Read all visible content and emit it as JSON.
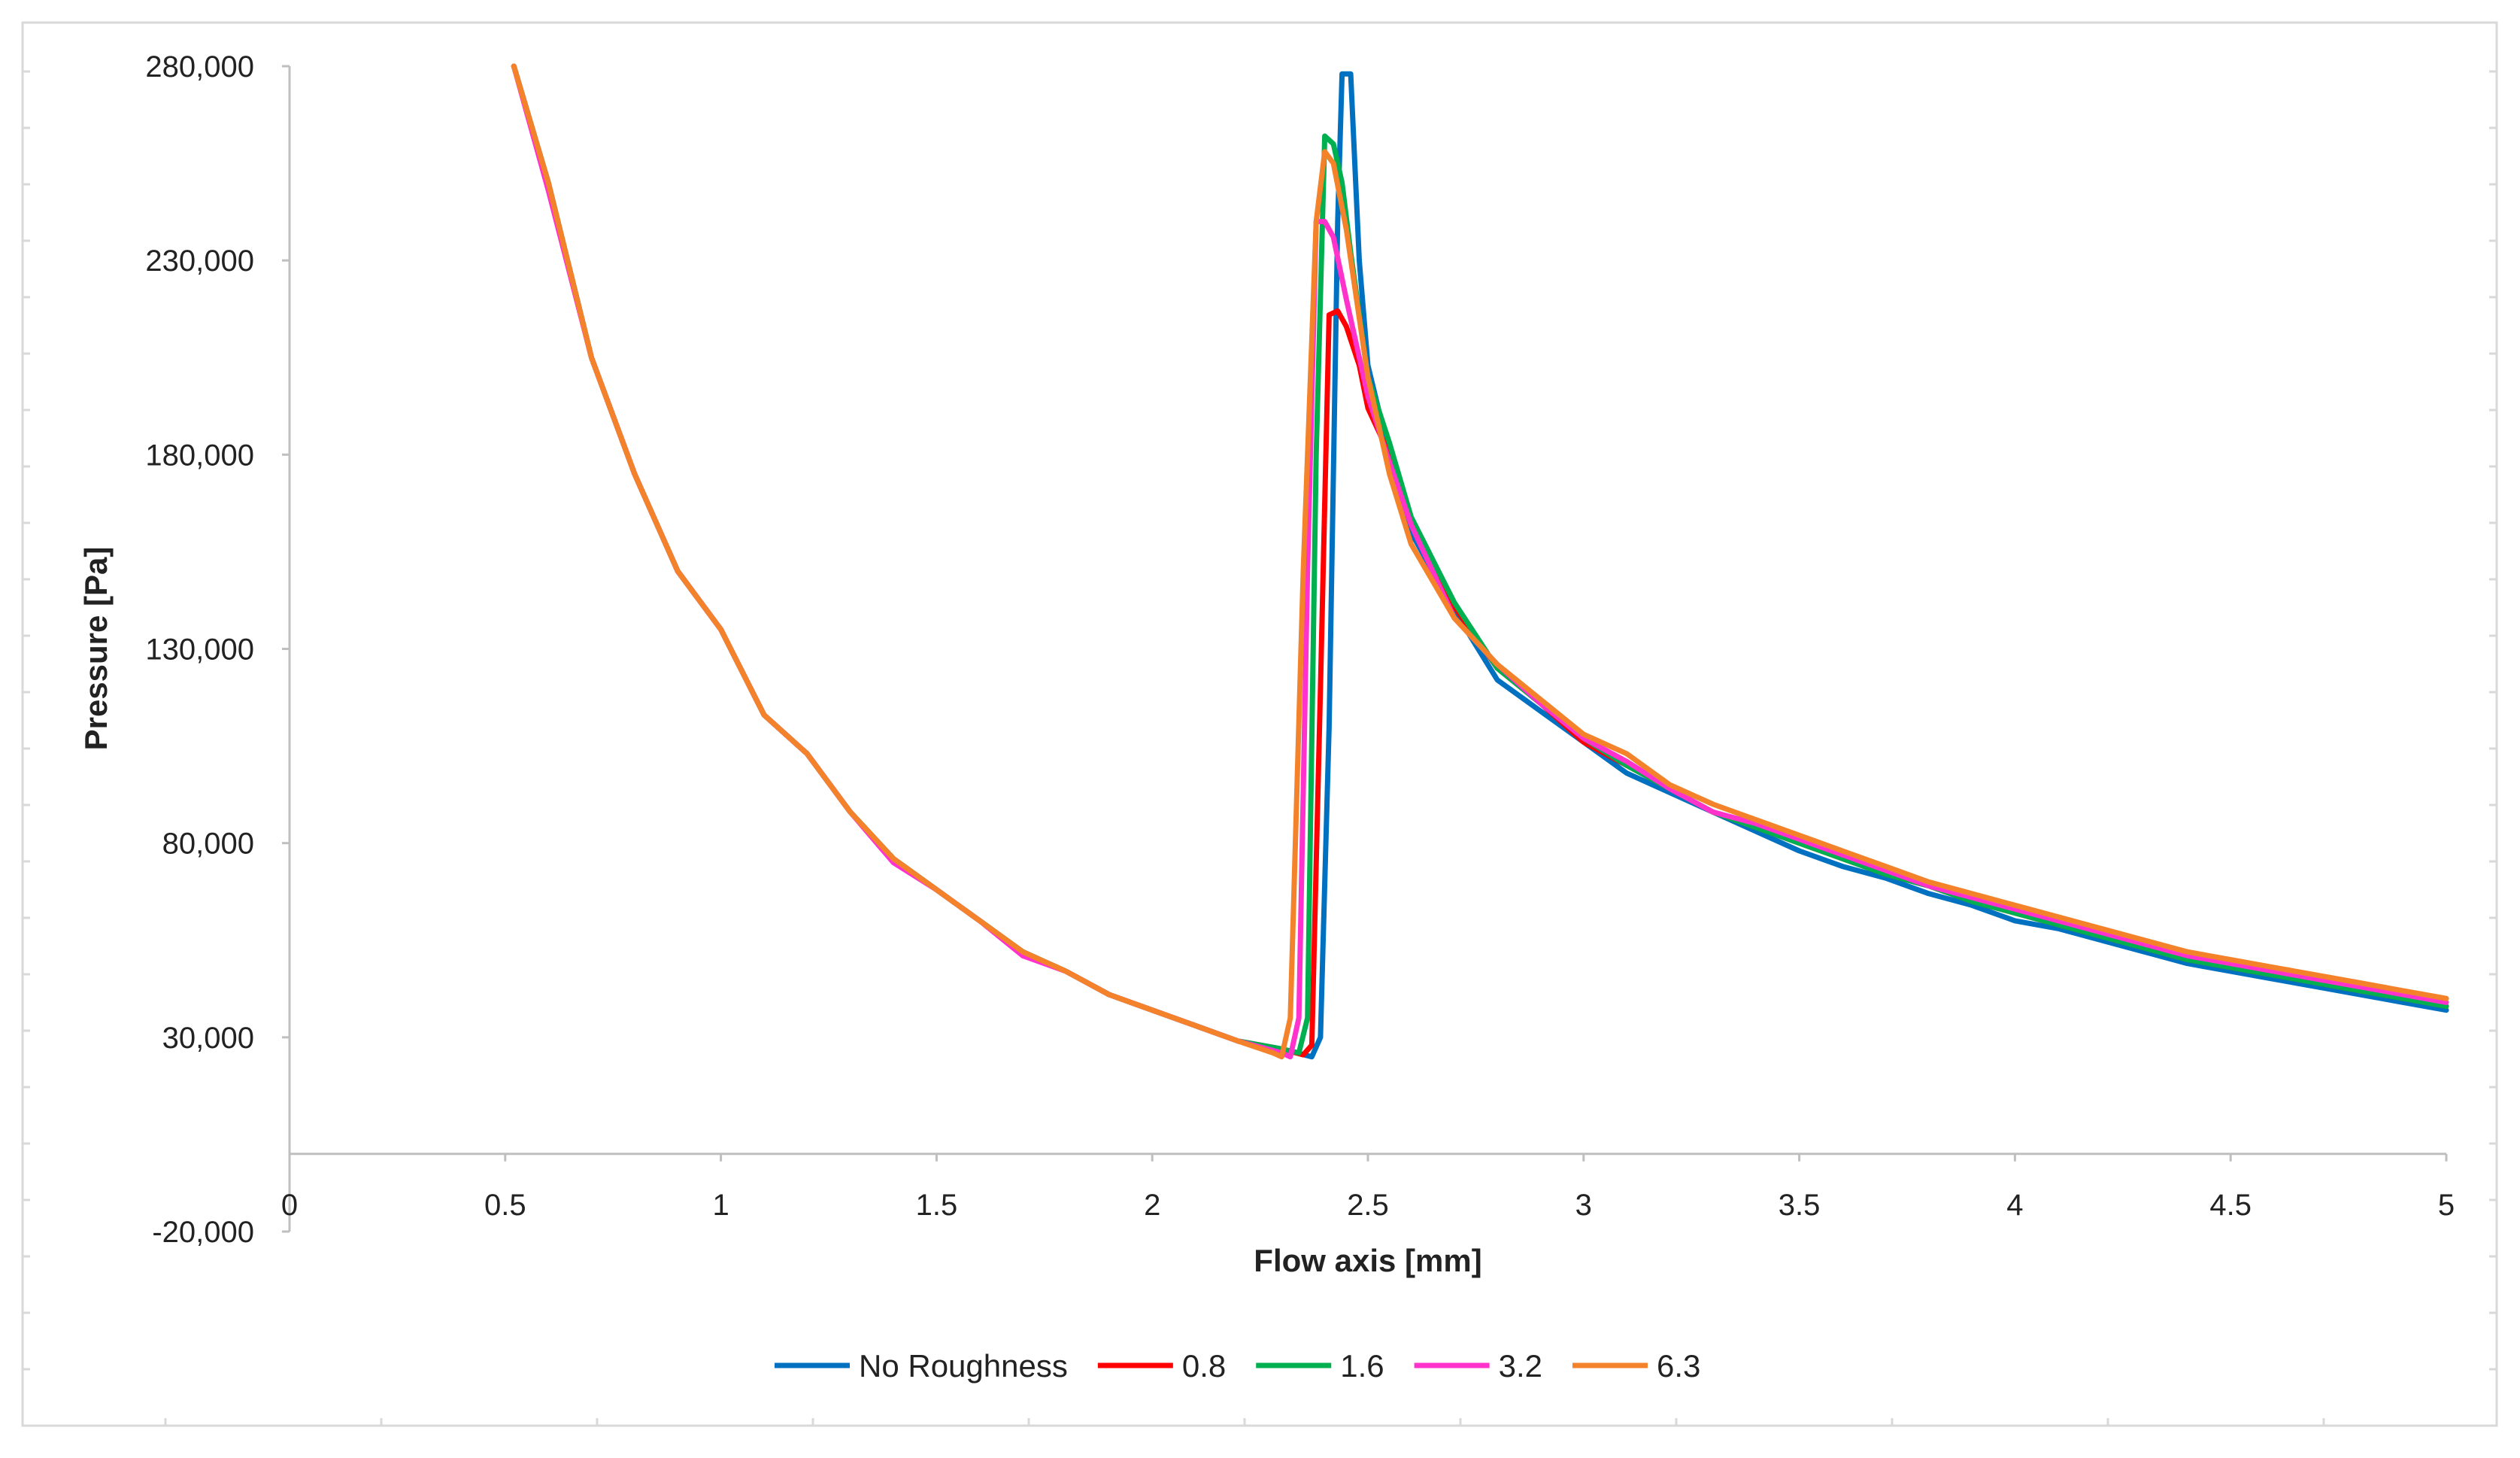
{
  "chart_data": {
    "type": "line",
    "title": "",
    "xlabel": "Flow axis [mm]",
    "ylabel": "Pressure [Pa]",
    "xlim": [
      0,
      5
    ],
    "ylim": [
      -20000,
      280000
    ],
    "xticks": [
      0,
      0.5,
      1,
      1.5,
      2,
      2.5,
      3,
      3.5,
      4,
      4.5,
      5
    ],
    "xtick_labels": [
      "0",
      "0.5",
      "1",
      "1.5",
      "2",
      "2.5",
      "3",
      "3.5",
      "4",
      "4.5",
      "5"
    ],
    "yticks": [
      -20000,
      30000,
      80000,
      130000,
      180000,
      230000,
      280000
    ],
    "ytick_labels": [
      "-20,000",
      "30,000",
      "80,000",
      "130,000",
      "180,000",
      "230,000",
      "280,000"
    ],
    "grid": false,
    "legend_position": "bottom",
    "series": [
      {
        "name": "No Roughness",
        "color": "#0070C0",
        "x": [
          0.52,
          0.6,
          0.7,
          0.8,
          0.9,
          1.0,
          1.1,
          1.2,
          1.3,
          1.4,
          1.5,
          1.6,
          1.7,
          1.8,
          1.9,
          2.0,
          2.1,
          2.2,
          2.3,
          2.37,
          2.39,
          2.41,
          2.43,
          2.44,
          2.46,
          2.48,
          2.5,
          2.55,
          2.6,
          2.7,
          2.8,
          2.9,
          3.0,
          3.1,
          3.2,
          3.3,
          3.4,
          3.5,
          3.6,
          3.7,
          3.8,
          3.9,
          4.0,
          4.1,
          4.2,
          4.3,
          4.4,
          4.5,
          4.6,
          4.7,
          4.8,
          4.9,
          5.0
        ],
        "y": [
          280000,
          250000,
          205000,
          175000,
          150000,
          135000,
          113000,
          103000,
          88000,
          76000,
          68000,
          60000,
          52000,
          47000,
          41000,
          37000,
          33000,
          29000,
          27000,
          25000,
          30000,
          110000,
          240000,
          278000,
          278000,
          230000,
          203000,
          180000,
          160000,
          140000,
          122000,
          114000,
          106000,
          98000,
          93000,
          88000,
          83000,
          78000,
          74000,
          71000,
          67000,
          64000,
          60000,
          58000,
          55000,
          52000,
          49000,
          47000,
          45000,
          43000,
          41000,
          39000,
          37000
        ]
      },
      {
        "name": "0.8",
        "color": "#FF0000",
        "x": [
          0.52,
          0.6,
          0.7,
          0.8,
          0.9,
          1.0,
          1.1,
          1.2,
          1.3,
          1.4,
          1.5,
          1.6,
          1.7,
          1.8,
          1.9,
          2.0,
          2.1,
          2.2,
          2.3,
          2.35,
          2.37,
          2.39,
          2.41,
          2.43,
          2.45,
          2.48,
          2.5,
          2.55,
          2.6,
          2.7,
          2.8,
          2.9,
          3.0,
          3.1,
          3.2,
          3.3,
          3.4,
          3.5,
          3.6,
          3.7,
          3.8,
          3.9,
          4.0,
          4.1,
          4.2,
          4.3,
          4.4,
          4.5,
          4.6,
          4.7,
          4.8,
          4.9,
          5.0
        ],
        "y": [
          280000,
          250000,
          205000,
          175000,
          150000,
          135000,
          113000,
          103000,
          88000,
          76000,
          68000,
          60000,
          52000,
          47000,
          41000,
          37000,
          33000,
          29000,
          27000,
          25500,
          28000,
          120000,
          216000,
          217000,
          213000,
          203000,
          192000,
          180000,
          162000,
          141000,
          125000,
          116000,
          106000,
          100000,
          94000,
          88000,
          84000,
          80000,
          76000,
          72000,
          69000,
          65000,
          62000,
          59000,
          56000,
          53000,
          50000,
          48000,
          46000,
          44000,
          42000,
          40000,
          38000
        ]
      },
      {
        "name": "1.6",
        "color": "#00B050",
        "x": [
          0.52,
          0.6,
          0.7,
          0.8,
          0.9,
          1.0,
          1.1,
          1.2,
          1.3,
          1.4,
          1.5,
          1.6,
          1.7,
          1.8,
          1.9,
          2.0,
          2.1,
          2.2,
          2.3,
          2.34,
          2.36,
          2.38,
          2.4,
          2.42,
          2.44,
          2.46,
          2.5,
          2.55,
          2.6,
          2.7,
          2.8,
          2.9,
          3.0,
          3.1,
          3.2,
          3.3,
          3.4,
          3.5,
          3.6,
          3.7,
          3.8,
          3.9,
          4.0,
          4.1,
          4.2,
          4.3,
          4.4,
          4.5,
          4.6,
          4.7,
          4.8,
          4.9,
          5.0
        ],
        "y": [
          280000,
          250000,
          205000,
          175000,
          150000,
          135000,
          113000,
          103000,
          88000,
          76000,
          68000,
          60000,
          52000,
          47000,
          41000,
          37000,
          33000,
          29000,
          27000,
          26000,
          35000,
          180000,
          262000,
          260000,
          250000,
          232000,
          200000,
          183000,
          164000,
          142000,
          125000,
          116000,
          107000,
          100000,
          94000,
          88000,
          84000,
          80000,
          76000,
          72000,
          69000,
          65000,
          62000,
          59000,
          56000,
          53000,
          50000,
          48000,
          46000,
          44000,
          42000,
          40000,
          38000
        ]
      },
      {
        "name": "3.2",
        "color": "#FF33CC",
        "x": [
          0.52,
          0.6,
          0.7,
          0.8,
          0.9,
          1.0,
          1.1,
          1.2,
          1.3,
          1.4,
          1.5,
          1.6,
          1.7,
          1.8,
          1.9,
          2.0,
          2.1,
          2.2,
          2.3,
          2.32,
          2.34,
          2.36,
          2.38,
          2.4,
          2.42,
          2.45,
          2.5,
          2.55,
          2.6,
          2.7,
          2.8,
          2.9,
          3.0,
          3.1,
          3.2,
          3.3,
          3.4,
          3.5,
          3.6,
          3.7,
          3.8,
          3.9,
          4.0,
          4.1,
          4.2,
          4.3,
          4.4,
          4.5,
          4.6,
          4.7,
          4.8,
          4.9,
          5.0
        ],
        "y": [
          280000,
          248000,
          205000,
          175000,
          150000,
          135000,
          113000,
          103000,
          88000,
          75000,
          68000,
          60000,
          51000,
          47000,
          41000,
          37000,
          33000,
          29000,
          26000,
          25000,
          35000,
          150000,
          240000,
          240000,
          236000,
          220000,
          195000,
          178000,
          162000,
          138000,
          126000,
          116000,
          107000,
          101000,
          94000,
          88000,
          85000,
          81000,
          77000,
          73000,
          69000,
          66000,
          63000,
          60000,
          57000,
          54000,
          51000,
          49000,
          47000,
          45000,
          43000,
          41000,
          39000
        ]
      },
      {
        "name": "6.3",
        "color": "#F4822A",
        "x": [
          0.52,
          0.6,
          0.7,
          0.8,
          0.9,
          1.0,
          1.1,
          1.2,
          1.3,
          1.4,
          1.5,
          1.6,
          1.7,
          1.8,
          1.9,
          2.0,
          2.1,
          2.2,
          2.28,
          2.3,
          2.32,
          2.35,
          2.38,
          2.4,
          2.42,
          2.45,
          2.5,
          2.55,
          2.6,
          2.7,
          2.8,
          2.9,
          3.0,
          3.1,
          3.2,
          3.3,
          3.4,
          3.5,
          3.6,
          3.7,
          3.8,
          3.9,
          4.0,
          4.1,
          4.2,
          4.3,
          4.4,
          4.5,
          4.6,
          4.7,
          4.8,
          4.9,
          5.0
        ],
        "y": [
          280000,
          250000,
          205000,
          175000,
          150000,
          135000,
          113000,
          103000,
          88000,
          76000,
          68000,
          60000,
          52000,
          47000,
          41000,
          37000,
          33000,
          29000,
          26000,
          25000,
          35000,
          150000,
          240000,
          258000,
          255000,
          238000,
          200000,
          175000,
          157000,
          138000,
          126000,
          117000,
          108000,
          103000,
          95000,
          90000,
          86000,
          82000,
          78000,
          74000,
          70000,
          67000,
          64000,
          61000,
          58000,
          55000,
          52000,
          50000,
          48000,
          46000,
          44000,
          42000,
          40000
        ]
      }
    ]
  }
}
